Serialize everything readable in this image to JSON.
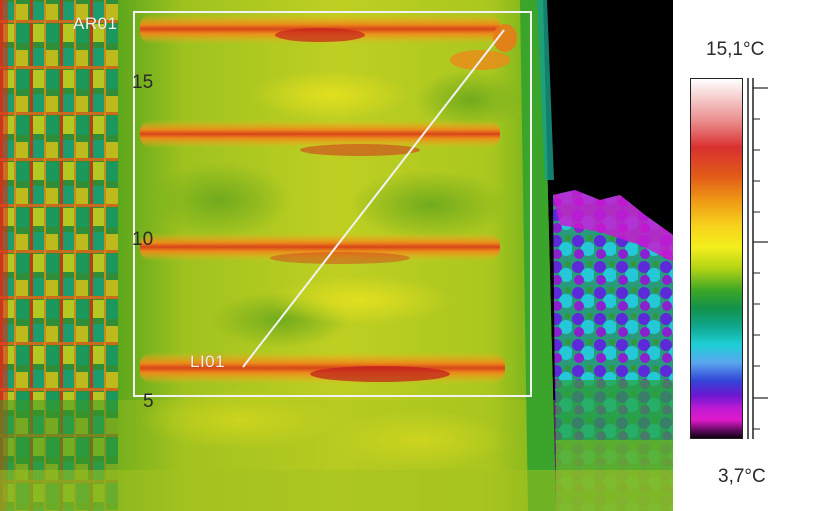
{
  "overlay": {
    "area_label": "AR01",
    "line_label": "LI01"
  },
  "scale": {
    "max_label": "15,1°C",
    "min_label": "3,7°C",
    "ticks": [
      "15",
      "10",
      "5"
    ]
  },
  "colors": {
    "building_base": "#b7cc22",
    "hot_stripe": "#e0601c",
    "hot_core": "#c8201c",
    "sky": "#000000",
    "vegetation_cold": "#7a1ad0",
    "overlay": "#f2f2f2"
  }
}
